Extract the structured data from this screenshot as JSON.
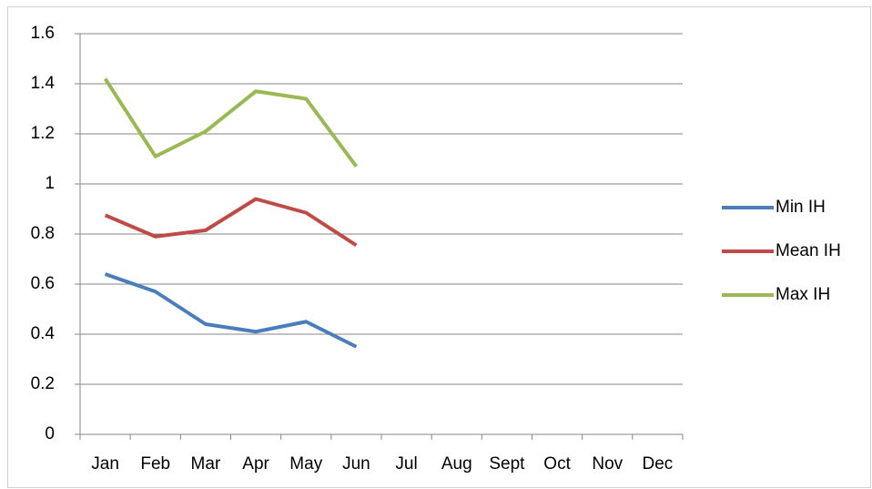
{
  "chart_data": {
    "type": "line",
    "categories": [
      "Jan",
      "Feb",
      "Mar",
      "Apr",
      "May",
      "Jun",
      "Jul",
      "Aug",
      "Sept",
      "Oct",
      "Nov",
      "Dec"
    ],
    "series": [
      {
        "name": "Min IH",
        "color": "#4a7ebb",
        "values": [
          0.64,
          0.57,
          0.44,
          0.41,
          0.45,
          0.35,
          null,
          null,
          null,
          null,
          null,
          null
        ]
      },
      {
        "name": "Mean IH",
        "color": "#be4b48",
        "values": [
          0.875,
          0.79,
          0.815,
          0.94,
          0.885,
          0.755,
          null,
          null,
          null,
          null,
          null,
          null
        ]
      },
      {
        "name": "Max IH",
        "color": "#98b954",
        "values": [
          1.42,
          1.11,
          1.21,
          1.37,
          1.34,
          1.07,
          null,
          null,
          null,
          null,
          null,
          null
        ]
      }
    ],
    "ylim": [
      0,
      1.6
    ],
    "yticks": [
      0,
      0.2,
      0.4,
      0.6,
      0.8,
      1,
      1.2,
      1.4,
      1.6
    ],
    "grid": true,
    "legend": "right"
  }
}
